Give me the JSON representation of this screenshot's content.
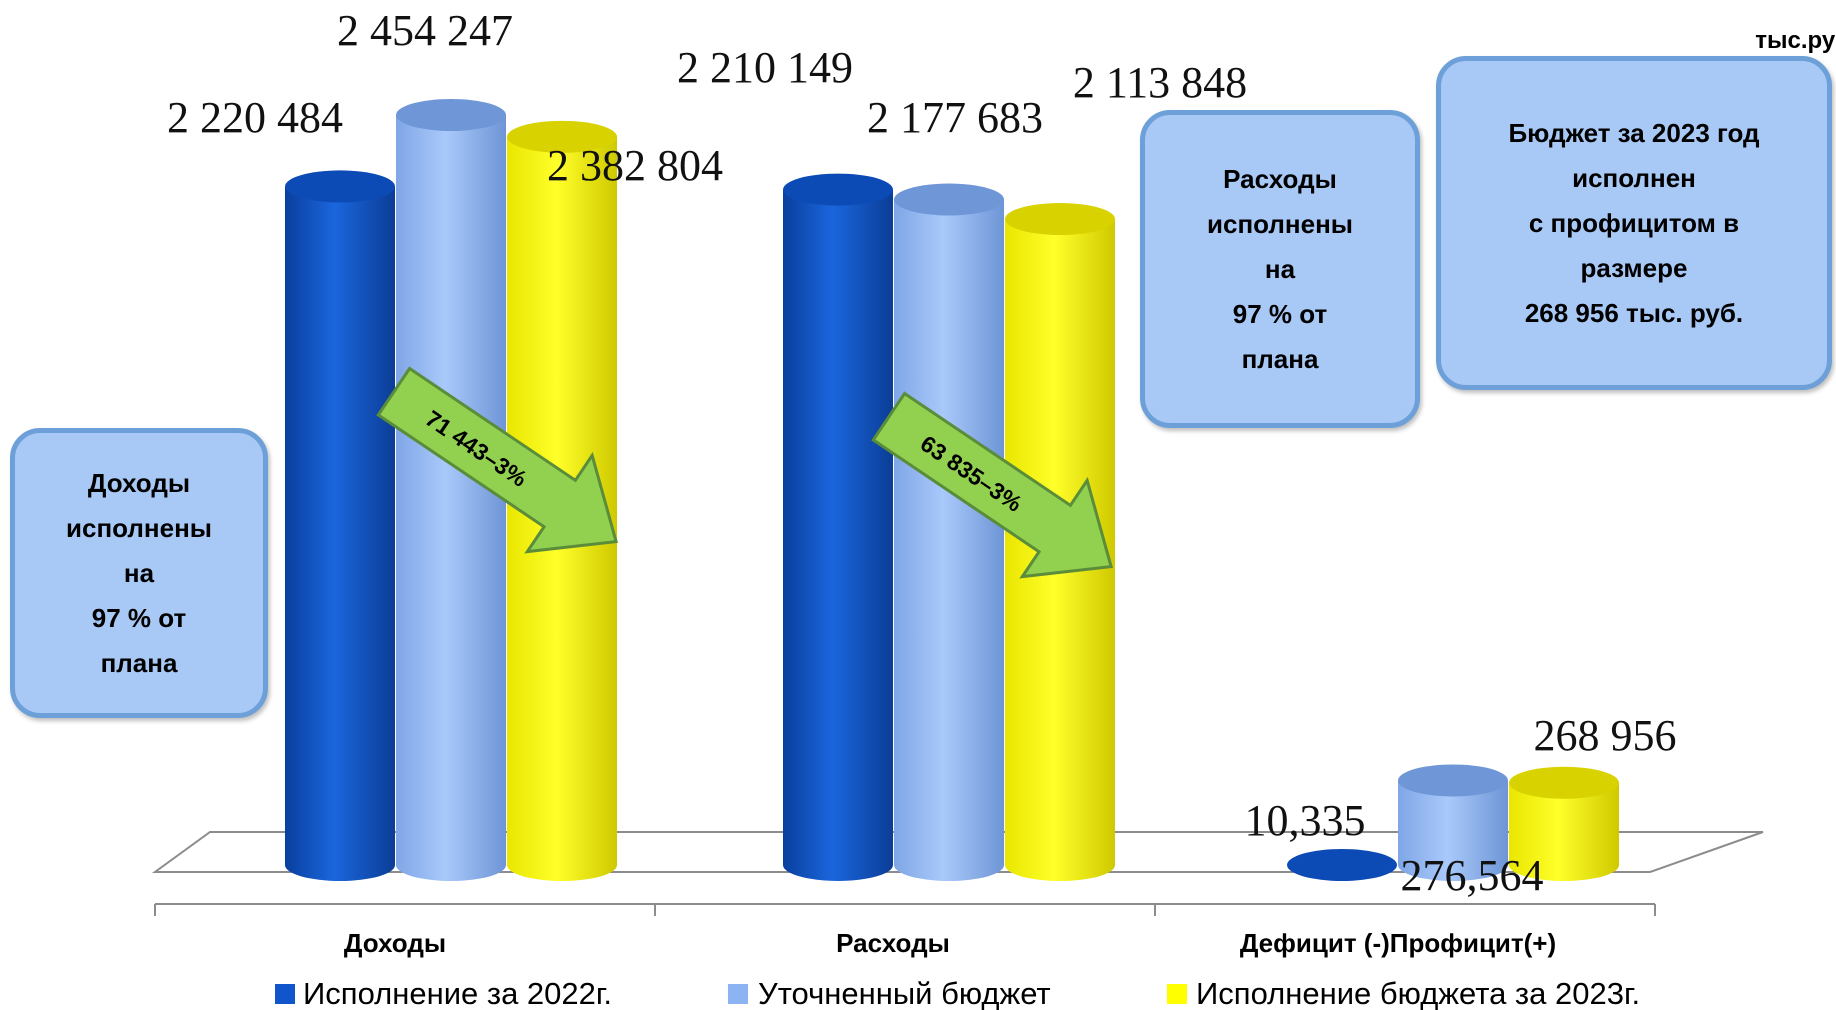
{
  "unit_label": "тыс.руб",
  "chart_data": {
    "type": "bar",
    "categories": [
      "Доходы",
      "Расходы",
      "Дефицит (-)Профицит(+)"
    ],
    "series": [
      {
        "name": "Исполнение за 2022г.",
        "values": [
          2220484,
          2210149,
          10335
        ],
        "labels": [
          "2 220 484",
          "2 210 149",
          "10,335"
        ]
      },
      {
        "name": "Уточненный бюджет",
        "values": [
          2454247,
          2177683,
          276564
        ],
        "labels": [
          "2 454 247",
          "2 177 683",
          "276,564"
        ]
      },
      {
        "name": "Исполнение бюджета за 2023г.",
        "values": [
          2382804,
          2113848,
          268956
        ],
        "labels": [
          "2 382 804",
          "2 113 848",
          "268 956"
        ]
      }
    ],
    "legend_position": "bottom",
    "colors": [
      "#1155cc",
      "#8db4f2",
      "#ffff00"
    ]
  },
  "callouts": {
    "income": "Доходы\nисполнены\nна\n97 % от\nплана",
    "expenses": "Расходы\nисполнены\nна\n97 % от\nплана",
    "surplus": "Бюджет за 2023 год\nисполнен\nс профицитом в\nразмере\n268 956 тыс. руб."
  },
  "arrows": {
    "income": "71 443–3%",
    "expenses": "63 835–3%"
  }
}
